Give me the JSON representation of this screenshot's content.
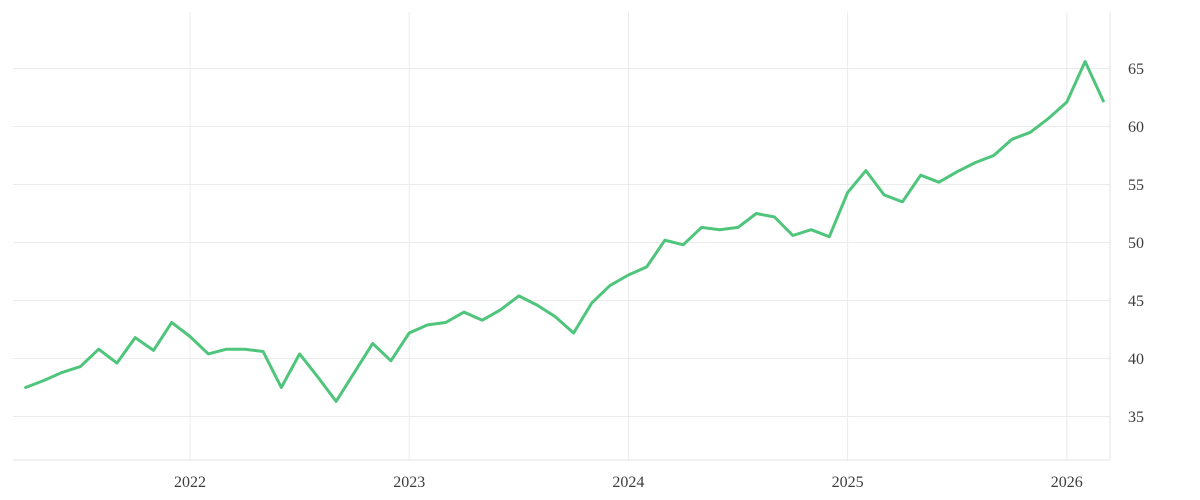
{
  "chart_data": {
    "type": "line",
    "title": "",
    "xlabel": "",
    "ylabel": "",
    "legend": "none",
    "grid": true,
    "background_color": "#ffffff",
    "gridline_color": "#ebebeb",
    "border_color": "#e3e3e3",
    "axis_label_color": "#3d3d3d",
    "line_color": "#4fc57c",
    "x_ticks": [
      "2022",
      "2023",
      "2024",
      "2025",
      "2026"
    ],
    "y_ticks": [
      35,
      40,
      45,
      50,
      55,
      60,
      65
    ],
    "ylim": [
      31.3,
      69.9
    ],
    "xlim_decimal_years": [
      2021.19,
      2026.37
    ],
    "series": [
      {
        "name": "value",
        "frequency": "monthly",
        "points": [
          [
            "2021-04",
            37.5
          ],
          [
            "2021-05",
            38.1
          ],
          [
            "2021-06",
            38.8
          ],
          [
            "2021-07",
            39.3
          ],
          [
            "2021-08",
            40.8
          ],
          [
            "2021-09",
            39.6
          ],
          [
            "2021-10",
            41.8
          ],
          [
            "2021-11",
            40.7
          ],
          [
            "2021-12",
            43.1
          ],
          [
            "2022-01",
            41.9
          ],
          [
            "2022-02",
            40.4
          ],
          [
            "2022-03",
            40.8
          ],
          [
            "2022-04",
            40.8
          ],
          [
            "2022-05",
            40.6
          ],
          [
            "2022-06",
            37.5
          ],
          [
            "2022-07",
            40.4
          ],
          [
            "2022-08",
            38.4
          ],
          [
            "2022-09",
            36.3
          ],
          [
            "2022-10",
            38.8
          ],
          [
            "2022-11",
            41.3
          ],
          [
            "2022-12",
            39.8
          ],
          [
            "2023-01",
            42.2
          ],
          [
            "2023-02",
            42.9
          ],
          [
            "2023-03",
            43.1
          ],
          [
            "2023-04",
            44.0
          ],
          [
            "2023-05",
            43.3
          ],
          [
            "2023-06",
            44.2
          ],
          [
            "2023-07",
            45.4
          ],
          [
            "2023-08",
            44.6
          ],
          [
            "2023-09",
            43.6
          ],
          [
            "2023-10",
            42.2
          ],
          [
            "2023-11",
            44.8
          ],
          [
            "2023-12",
            46.3
          ],
          [
            "2024-01",
            47.2
          ],
          [
            "2024-02",
            47.9
          ],
          [
            "2024-03",
            50.2
          ],
          [
            "2024-04",
            49.8
          ],
          [
            "2024-05",
            51.3
          ],
          [
            "2024-06",
            51.1
          ],
          [
            "2024-07",
            51.3
          ],
          [
            "2024-08",
            52.5
          ],
          [
            "2024-09",
            52.2
          ],
          [
            "2024-10",
            50.6
          ],
          [
            "2024-11",
            51.1
          ],
          [
            "2024-12",
            50.5
          ],
          [
            "2025-01",
            54.3
          ],
          [
            "2025-02",
            56.2
          ],
          [
            "2025-03",
            54.1
          ],
          [
            "2025-04",
            53.5
          ],
          [
            "2025-05",
            55.8
          ],
          [
            "2025-06",
            55.2
          ],
          [
            "2025-07",
            56.1
          ],
          [
            "2025-08",
            56.9
          ],
          [
            "2025-09",
            57.5
          ],
          [
            "2025-10",
            58.9
          ],
          [
            "2025-11",
            59.5
          ],
          [
            "2025-12",
            60.7
          ],
          [
            "2026-01",
            62.1
          ],
          [
            "2026-02",
            65.6
          ],
          [
            "2026-03",
            62.2
          ]
        ]
      }
    ]
  }
}
